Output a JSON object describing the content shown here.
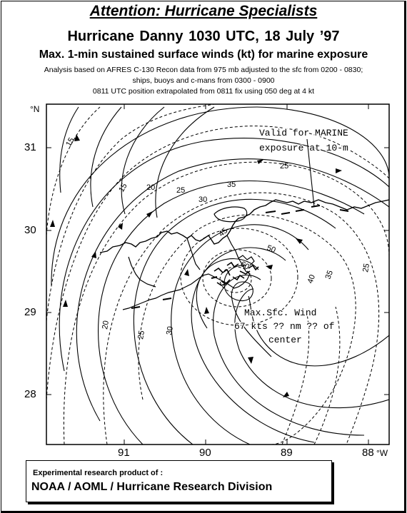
{
  "header": {
    "attention": "Attention: Hurricane Specialists",
    "title": "Hurricane Danny   1030 UTC, 18 July ’97",
    "subtitle": "Max. 1-min sustained surface winds (kt) for marine exposure",
    "notes": [
      "Analysis based on  AFRES C-130 Recon data from 975 mb adjusted to the sfc from 0200 - 0830;",
      "ships,  buoys and c-mans  from 0300 - 0900",
      "0811 UTC position extrapolated from 0811  fix using 050 deg at 4 kt"
    ]
  },
  "map": {
    "lat_unit": "°N",
    "lon_unit": "°W",
    "lat_labels": [
      "31",
      "30",
      "29",
      "28"
    ],
    "lon_labels": [
      "91",
      "90",
      "89",
      "88"
    ],
    "valid_note": [
      "Valid for MARINE",
      "exposure at 10-m"
    ],
    "max_wind_note": [
      "Max.Sfc. Wind",
      "67 kts ?? nm ?? of",
      "center"
    ],
    "isotach_labels": [
      "15",
      "15",
      "20",
      "20",
      "25",
      "25",
      "25",
      "25",
      "30",
      "30",
      "35",
      "35",
      "40",
      "45",
      "50",
      "60"
    ]
  },
  "credit": {
    "line1": "Experimental research product of :",
    "line2": "NOAA / AOML / Hurricane Research Division"
  }
}
